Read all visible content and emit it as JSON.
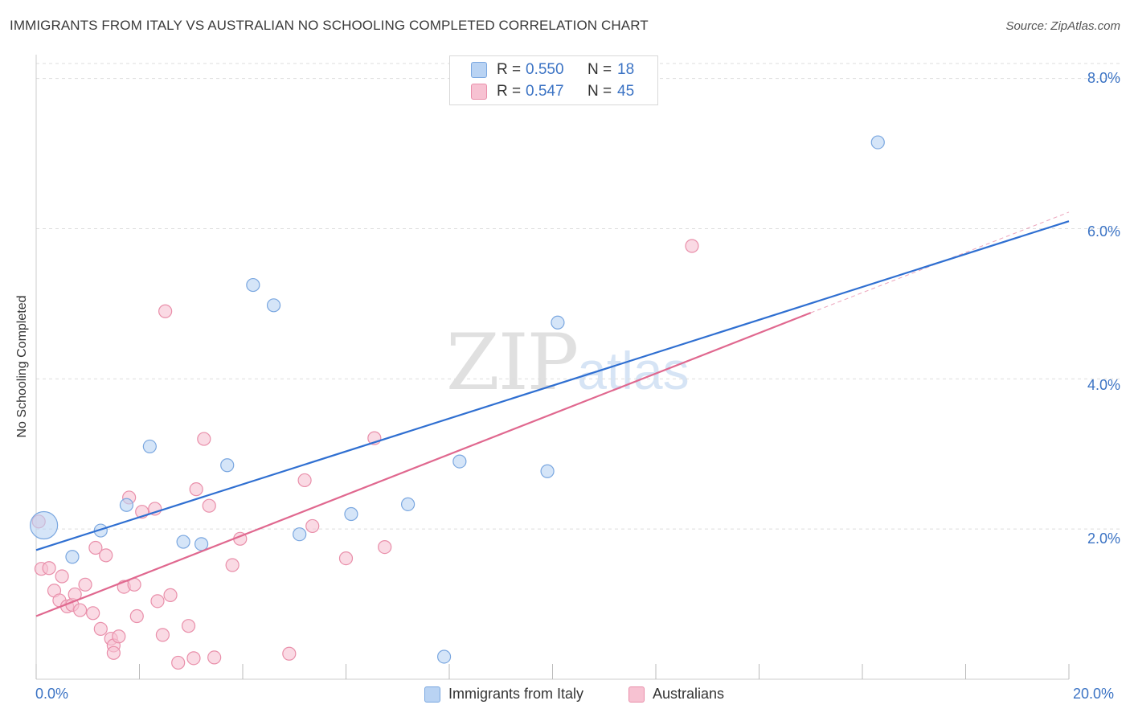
{
  "title": "IMMIGRANTS FROM ITALY VS AUSTRALIAN NO SCHOOLING COMPLETED CORRELATION CHART",
  "source": "Source: ZipAtlas.com",
  "watermark": {
    "zip": "ZIP",
    "atlas": "atlas"
  },
  "colors": {
    "blue_fill": "#b9d3f3",
    "blue_stroke": "#7aa7e0",
    "blue_line": "#2f6fd1",
    "pink_fill": "#f7c2d2",
    "pink_stroke": "#e98faa",
    "pink_line": "#e0688f",
    "grid": "#dddddd",
    "axis_text": "#3b73c4"
  },
  "legend": {
    "rows": [
      {
        "r_label": "R =",
        "r_value": "0.550",
        "n_label": "N =",
        "n_value": "18"
      },
      {
        "r_label": "R =",
        "r_value": "0.547",
        "n_label": "N =",
        "n_value": "45"
      }
    ]
  },
  "bottom_legend": {
    "italy": "Immigrants from Italy",
    "australians": "Australians"
  },
  "axes": {
    "ylabel": "No Schooling Completed",
    "x_ticks": [
      "0.0%",
      "20.0%"
    ],
    "y_ticks": [
      "2.0%",
      "4.0%",
      "6.0%",
      "8.0%"
    ]
  },
  "chart_data": {
    "type": "scatter",
    "title": "IMMIGRANTS FROM ITALY VS AUSTRALIAN NO SCHOOLING COMPLETED CORRELATION CHART",
    "xlabel": "",
    "ylabel": "No Schooling Completed",
    "xlim": [
      0,
      20
    ],
    "ylim": [
      0,
      8.2
    ],
    "series": [
      {
        "name": "Immigrants from Italy",
        "color": "blue",
        "points": [
          [
            0.15,
            2.05
          ],
          [
            0.7,
            1.63
          ],
          [
            1.25,
            1.98
          ],
          [
            1.75,
            2.32
          ],
          [
            2.2,
            3.1
          ],
          [
            2.85,
            1.83
          ],
          [
            3.2,
            1.8
          ],
          [
            3.7,
            2.85
          ],
          [
            4.2,
            5.25
          ],
          [
            4.6,
            4.98
          ],
          [
            5.1,
            1.93
          ],
          [
            6.1,
            2.2
          ],
          [
            7.2,
            2.33
          ],
          [
            8.2,
            2.9
          ],
          [
            9.9,
            2.77
          ],
          [
            10.1,
            4.75
          ],
          [
            16.3,
            7.15
          ],
          [
            7.9,
            0.3
          ]
        ],
        "big_point_index": 0,
        "trend": {
          "x0": 0,
          "y0": 1.72,
          "x1": 20,
          "y1": 6.1
        }
      },
      {
        "name": "Australians",
        "color": "pink",
        "points": [
          [
            0.05,
            2.1
          ],
          [
            0.1,
            1.47
          ],
          [
            0.25,
            1.48
          ],
          [
            0.35,
            1.18
          ],
          [
            0.45,
            1.05
          ],
          [
            0.5,
            1.37
          ],
          [
            0.6,
            0.97
          ],
          [
            0.7,
            0.99
          ],
          [
            0.75,
            1.13
          ],
          [
            0.85,
            0.92
          ],
          [
            0.95,
            1.26
          ],
          [
            1.1,
            0.88
          ],
          [
            1.15,
            1.75
          ],
          [
            1.25,
            0.67
          ],
          [
            1.35,
            1.65
          ],
          [
            1.45,
            0.54
          ],
          [
            1.5,
            0.45
          ],
          [
            1.6,
            0.57
          ],
          [
            1.7,
            1.23
          ],
          [
            1.8,
            2.42
          ],
          [
            1.9,
            1.26
          ],
          [
            1.95,
            0.84
          ],
          [
            2.05,
            2.23
          ],
          [
            2.3,
            2.27
          ],
          [
            2.35,
            1.04
          ],
          [
            2.45,
            0.59
          ],
          [
            2.5,
            4.9
          ],
          [
            2.6,
            1.12
          ],
          [
            2.75,
            0.22
          ],
          [
            2.95,
            0.71
          ],
          [
            3.05,
            0.28
          ],
          [
            3.1,
            2.53
          ],
          [
            3.25,
            3.2
          ],
          [
            3.35,
            2.31
          ],
          [
            3.45,
            0.29
          ],
          [
            3.8,
            1.52
          ],
          [
            3.95,
            1.87
          ],
          [
            4.9,
            0.34
          ],
          [
            5.2,
            2.65
          ],
          [
            5.35,
            2.04
          ],
          [
            6.0,
            1.61
          ],
          [
            6.55,
            3.21
          ],
          [
            6.75,
            1.76
          ],
          [
            12.7,
            5.77
          ],
          [
            1.5,
            0.35
          ]
        ],
        "trend": {
          "x0": 0,
          "y0": 0.84,
          "x1": 15,
          "y1": 4.88
        },
        "trend_extension": {
          "x0": 15,
          "y0": 4.88,
          "x1": 20,
          "y1": 6.22
        }
      }
    ]
  }
}
